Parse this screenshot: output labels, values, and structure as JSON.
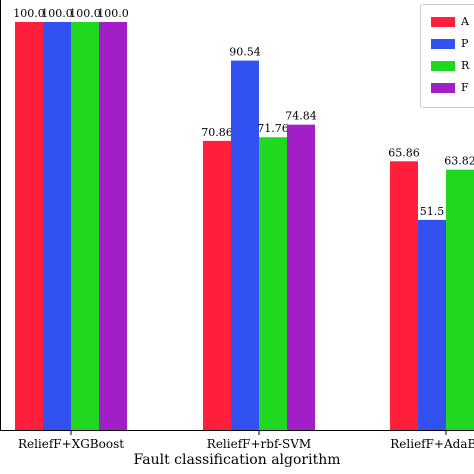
{
  "chart_data": {
    "type": "bar",
    "xlabel": "Fault classification algorithm",
    "ylabel": "",
    "ylim": [
      0,
      100
    ],
    "categories": [
      "ReliefF+XGBoost",
      "ReliefF+rbf-SVM",
      "ReliefF+AdaBoost"
    ],
    "series": [
      {
        "name": "A",
        "color": "#ff1f3a",
        "values": [
          100.0,
          70.86,
          65.86
        ],
        "labels": [
          "100.0",
          "70.86",
          "65.86"
        ]
      },
      {
        "name": "P",
        "color": "#3152f0",
        "values": [
          100.0,
          90.54,
          51.5
        ],
        "labels": [
          "100.0",
          "90.54",
          "51.5"
        ]
      },
      {
        "name": "R",
        "color": "#1fd81f",
        "values": [
          100.0,
          71.76,
          63.82
        ],
        "labels": [
          "100.0",
          "71.76",
          "63.82"
        ]
      },
      {
        "name": "F",
        "color": "#a21fc8",
        "values": [
          100.0,
          74.84,
          null
        ],
        "labels": [
          "100.0",
          "74.84",
          ""
        ]
      }
    ],
    "grid": false,
    "legend_position": "top-right"
  }
}
